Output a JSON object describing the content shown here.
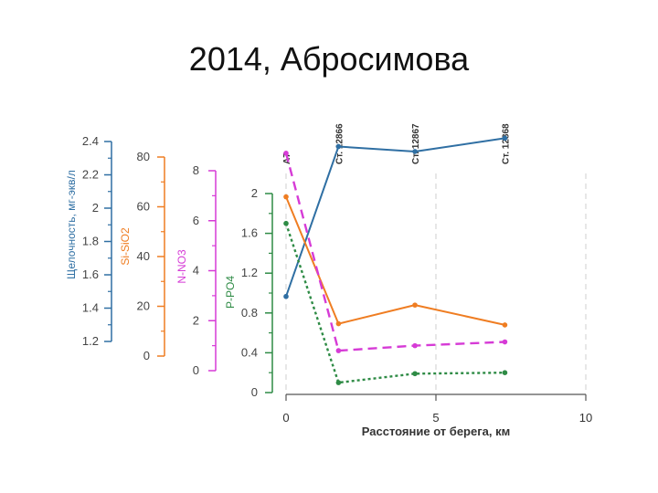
{
  "slide": {
    "title": "2014, Абросимова"
  },
  "colors": {
    "alkalinity": "#2f6fa3",
    "silicate": "#ef7d22",
    "nitrate": "#d63bd6",
    "phosphate": "#2e8b45",
    "grid": "#cfcfcf",
    "axis": "#555555"
  },
  "chart_data": {
    "type": "line",
    "xlabel": "Расстояние от берега, км",
    "xlim": [
      0,
      10
    ],
    "xticks": [
      0,
      5,
      10
    ],
    "stations": [
      {
        "label": "A7",
        "x": 0
      },
      {
        "label": "Ст. 12866",
        "x": 1.75
      },
      {
        "label": "Ст. 12867",
        "x": 4.3
      },
      {
        "label": "Ст. 12868",
        "x": 7.3
      }
    ],
    "axes": [
      {
        "key": "alkalinity",
        "label": "Щелочность, мг-экв/л",
        "min": 1.2,
        "max": 2.4,
        "ticks": [
          "1.2",
          "1.4",
          "1.6",
          "1.8",
          "2",
          "2.2",
          "2.4"
        ]
      },
      {
        "key": "silicate",
        "label": "Si-SiO2",
        "min": 0,
        "max": 80,
        "ticks": [
          "0",
          "20",
          "40",
          "60",
          "80"
        ]
      },
      {
        "key": "nitrate",
        "label": "N-NO3",
        "min": 0,
        "max": 8,
        "ticks": [
          "0",
          "2",
          "4",
          "6",
          "8"
        ]
      },
      {
        "key": "phosphate",
        "label": "P-PO4",
        "min": 0,
        "max": 2,
        "ticks": [
          "0",
          "0.4",
          "0.8",
          "1.2",
          "1.6",
          "2"
        ]
      }
    ],
    "series": [
      {
        "key": "alkalinity",
        "axis": "alkalinity",
        "style": "solid",
        "x": [
          0,
          1.75,
          4.3,
          7.3
        ],
        "y": [
          1.47,
          2.37,
          2.34,
          2.42
        ]
      },
      {
        "key": "silicate",
        "axis": "silicate",
        "style": "solid",
        "x": [
          0,
          1.75,
          4.3,
          7.3
        ],
        "y": [
          64,
          13,
          20.5,
          12.5
        ]
      },
      {
        "key": "nitrate",
        "axis": "nitrate",
        "style": "dashed",
        "x": [
          0,
          1.75,
          4.3,
          7.3
        ],
        "y": [
          8.7,
          0.8,
          1.0,
          1.15
        ]
      },
      {
        "key": "phosphate",
        "axis": "phosphate",
        "style": "dotted",
        "x": [
          0,
          1.75,
          4.3,
          7.3
        ],
        "y": [
          1.7,
          0.1,
          0.19,
          0.2
        ]
      }
    ]
  }
}
